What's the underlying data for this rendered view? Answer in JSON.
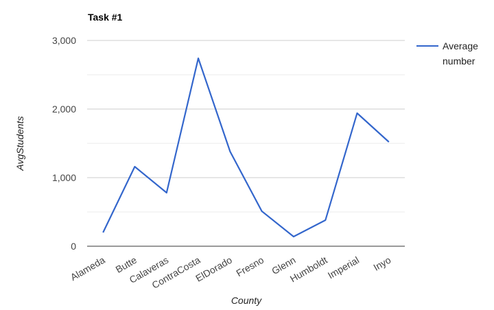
{
  "chart_data": {
    "type": "line",
    "title": "Task #1",
    "xlabel": "County",
    "ylabel": "AvgStudents",
    "categories": [
      "Alameda",
      "Butte",
      "Calaveras",
      "ContraCosta",
      "ElDorado",
      "Fresno",
      "Glenn",
      "Humboldt",
      "Imperial",
      "Inyo"
    ],
    "series": [
      {
        "name_lines": [
          "Average",
          "number"
        ],
        "color": "#3366cc",
        "values": [
          200,
          1160,
          780,
          2740,
          1380,
          510,
          140,
          380,
          1940,
          1520
        ]
      }
    ],
    "ylim": [
      0,
      3000
    ],
    "yticks": [
      0,
      1000,
      2000,
      3000
    ],
    "ytick_labels": [
      "0",
      "1,000",
      "2,000",
      "3,000"
    ],
    "grid": true,
    "legend_position": "right"
  }
}
